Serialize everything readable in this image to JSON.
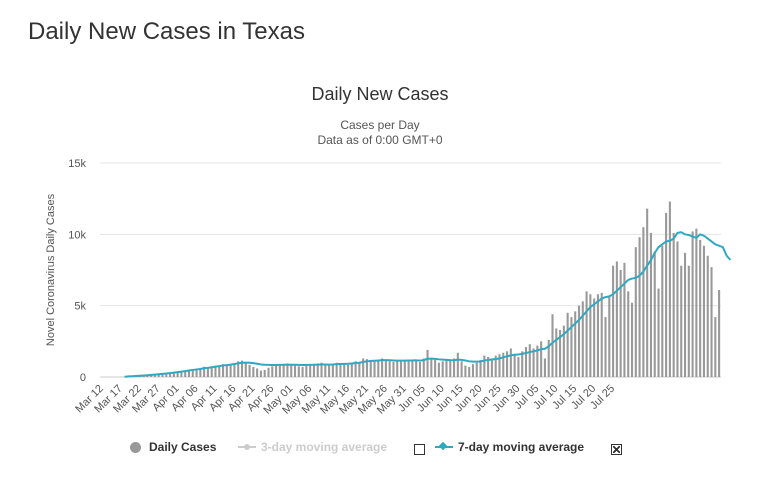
{
  "page": {
    "title": "Daily New Cases in Texas"
  },
  "chart_data": {
    "type": "bar",
    "title": "Daily New Cases",
    "subtitle": "Cases per Day",
    "subtitle2": "Data as of 0:00 GMT+0",
    "ylabel": "Novel Coronavirus Daily Cases",
    "xlabel": "",
    "ylim": [
      0,
      15000
    ],
    "yticks": [
      0,
      5000,
      10000,
      15000
    ],
    "ytick_labels": [
      "0",
      "5k",
      "10k",
      "15k"
    ],
    "xtick_labels": [
      "Mar 12",
      "Mar 17",
      "Mar 22",
      "Mar 27",
      "Apr 01",
      "Apr 06",
      "Apr 11",
      "Apr 16",
      "Apr 21",
      "Apr 26",
      "May 01",
      "May 06",
      "May 11",
      "May 16",
      "May 21",
      "May 26",
      "May 31",
      "Jun 05",
      "Jun 10",
      "Jun 15",
      "Jun 20",
      "Jun 25",
      "Jun 30",
      "Jul 05",
      "Jul 10",
      "Jul 15",
      "Jul 20",
      "Jul 25"
    ],
    "grid": true,
    "legend_position": "bottom",
    "colors": {
      "bars": "#999999",
      "avg7": "#2fa8c2",
      "avg3": "#cccccc",
      "grid": "#e6e6e6"
    },
    "series": [
      {
        "name": "Daily Cases",
        "type": "bar",
        "values": [
          0,
          0,
          0,
          0,
          0,
          10,
          20,
          30,
          40,
          60,
          70,
          80,
          120,
          150,
          180,
          200,
          220,
          260,
          300,
          350,
          380,
          400,
          450,
          520,
          560,
          580,
          600,
          720,
          650,
          680,
          780,
          700,
          900,
          820,
          880,
          950,
          1100,
          1150,
          1000,
          850,
          700,
          600,
          450,
          500,
          650,
          750,
          800,
          850,
          900,
          950,
          880,
          800,
          750,
          700,
          900,
          850,
          800,
          950,
          1000,
          900,
          850,
          900,
          1000,
          950,
          900,
          850,
          1000,
          1100,
          950,
          1300,
          1250,
          1200,
          1100,
          1150,
          1300,
          1200,
          1100,
          1050,
          1100,
          1150,
          1100,
          1200,
          1150,
          1200,
          1050,
          1300,
          1900,
          1300,
          1200,
          1000,
          1100,
          1200,
          1150,
          1300,
          1700,
          1100,
          800,
          700,
          900,
          1000,
          1200,
          1500,
          1400,
          1300,
          1500,
          1600,
          1700,
          1800,
          2000,
          1600,
          1400,
          1800,
          2100,
          2300,
          2000,
          2200,
          2500,
          1300,
          2600,
          4400,
          3400,
          3300,
          3600,
          4500,
          4200,
          4600,
          5000,
          5300,
          6000,
          5800,
          5500,
          5800,
          5900,
          4200,
          5600,
          7800,
          8100,
          7500,
          8000,
          6000,
          5200,
          9100,
          9800,
          10500,
          11800,
          10100,
          8800,
          6200,
          9200,
          11500,
          12300,
          10100,
          9500,
          7800,
          8700,
          7800,
          10200,
          10400,
          9600,
          9200,
          8500,
          7700,
          4200,
          6100
        ]
      },
      {
        "name": "3-day moving average",
        "type": "line",
        "visible": false,
        "values": []
      },
      {
        "name": "7-day moving average",
        "type": "line",
        "values": [
          null,
          null,
          null,
          null,
          null,
          null,
          20,
          40,
          55,
          70,
          90,
          105,
          125,
          150,
          170,
          190,
          215,
          245,
          275,
          310,
          345,
          375,
          410,
          455,
          495,
          530,
          560,
          620,
          640,
          680,
          730,
          760,
          810,
          830,
          870,
          910,
          960,
          1000,
          1010,
          1000,
          970,
          930,
          880,
          860,
          850,
          840,
          840,
          850,
          860,
          870,
          860,
          860,
          850,
          840,
          850,
          850,
          860,
          870,
          880,
          880,
          870,
          880,
          900,
          910,
          920,
          930,
          950,
          980,
          1000,
          1060,
          1100,
          1120,
          1140,
          1160,
          1180,
          1180,
          1170,
          1160,
          1150,
          1150,
          1150,
          1160,
          1160,
          1170,
          1150,
          1180,
          1280,
          1290,
          1270,
          1240,
          1220,
          1200,
          1180,
          1170,
          1220,
          1200,
          1160,
          1100,
          1080,
          1080,
          1090,
          1150,
          1200,
          1230,
          1260,
          1300,
          1380,
          1450,
          1520,
          1560,
          1580,
          1620,
          1680,
          1750,
          1800,
          1860,
          1950,
          1980,
          2150,
          2400,
          2600,
          2800,
          3000,
          3250,
          3500,
          3750,
          4000,
          4300,
          4600,
          4900,
          5100,
          5300,
          5500,
          5600,
          5650,
          5800,
          6050,
          6300,
          6550,
          6800,
          6900,
          6950,
          7100,
          7400,
          7800,
          8200,
          8700,
          9100,
          9300,
          9500,
          9550,
          9700,
          10100,
          10150,
          10000,
          9950,
          9850,
          9750,
          10000,
          9900,
          9700,
          9500,
          9300,
          9200,
          9100,
          8500,
          8200
        ]
      }
    ]
  },
  "legend": {
    "daily_label": "Daily Cases",
    "avg3_label": "3-day moving average",
    "avg7_label": "7-day moving average"
  }
}
